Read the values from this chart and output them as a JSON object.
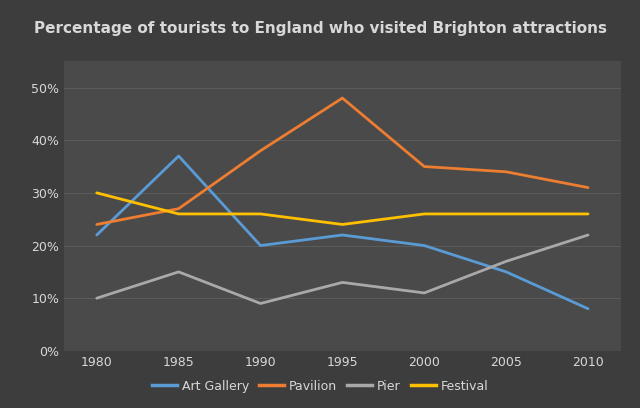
{
  "title": "Percentage of tourists to England who visited Brighton attractions",
  "years": [
    1980,
    1985,
    1990,
    1995,
    2000,
    2005,
    2010
  ],
  "series": [
    {
      "key": "Art Gallery",
      "values": [
        22,
        37,
        20,
        22,
        20,
        15,
        8
      ],
      "color": "#5B9BD5",
      "label": "Art Gallery"
    },
    {
      "key": "Pavilion",
      "values": [
        24,
        27,
        38,
        48,
        35,
        34,
        31
      ],
      "color": "#ED7D31",
      "label": "Pavilion"
    },
    {
      "key": "Pier",
      "values": [
        10,
        15,
        9,
        13,
        11,
        17,
        22
      ],
      "color": "#A9A9A9",
      "label": "Pier"
    },
    {
      "key": "Festival",
      "values": [
        30,
        26,
        26,
        24,
        26,
        26,
        26
      ],
      "color": "#FFC000",
      "label": "Festival"
    }
  ],
  "ylim": [
    0,
    55
  ],
  "yticks": [
    0,
    10,
    20,
    30,
    40,
    50
  ],
  "ytick_labels": [
    "0%",
    "10%",
    "20%",
    "30%",
    "40%",
    "50%"
  ],
  "xlim": [
    1978,
    2012
  ],
  "background_color": "#3d3d3d",
  "plot_background_color": "#4a4a4a",
  "text_color": "#d8d8d8",
  "grid_color": "#606060",
  "title_fontsize": 11,
  "legend_fontsize": 9,
  "tick_fontsize": 9
}
